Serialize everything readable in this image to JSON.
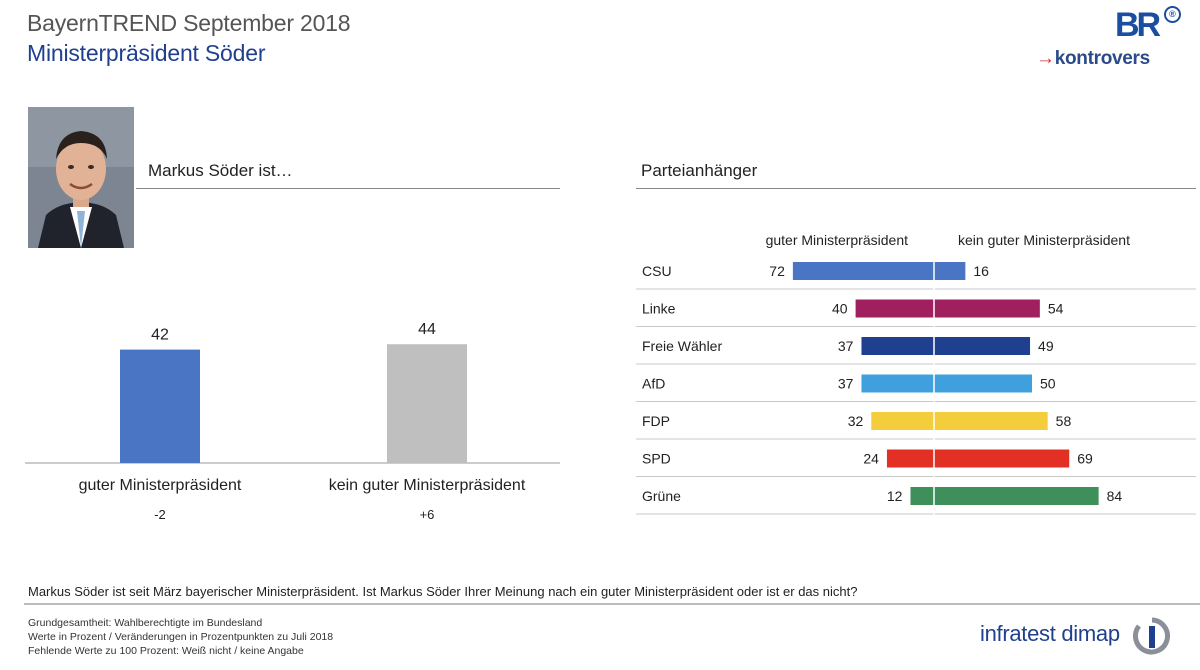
{
  "header": {
    "title": "BayernTREND September 2018",
    "subtitle": "Ministerpräsident Söder"
  },
  "logos": {
    "br": "BR",
    "br_reg": "®",
    "kontrovers_arrow": "→",
    "kontrovers": "kontrovers",
    "infratest": "infratest dimap"
  },
  "colors": {
    "positive_overall": "#4a74c4",
    "negative_overall": "#bfbfbf",
    "title_blue": "#1f3f8f"
  },
  "left_panel": {
    "label": "Markus Söder ist…"
  },
  "right_panel": {
    "label": "Parteianhänger"
  },
  "chart_data": [
    {
      "type": "bar",
      "title": "Markus Söder ist…",
      "categories": [
        "guter Ministerpräsident",
        "kein guter Ministerpräsident"
      ],
      "values": [
        42,
        44
      ],
      "changes": [
        "-2",
        "+6"
      ],
      "colors": [
        "#4a74c4",
        "#bfbfbf"
      ],
      "ylim": [
        0,
        100
      ],
      "grid": false
    },
    {
      "type": "bar",
      "orientation": "diverging-horizontal",
      "title": "Parteianhänger",
      "categories": [
        "CSU",
        "Linke",
        "Freie Wähler",
        "AfD",
        "FDP",
        "SPD",
        "Grüne"
      ],
      "series": [
        {
          "name": "guter Ministerpräsident",
          "values": [
            72,
            40,
            37,
            37,
            32,
            24,
            12
          ]
        },
        {
          "name": "kein guter Ministerpräsident",
          "values": [
            16,
            54,
            49,
            50,
            58,
            69,
            84
          ]
        }
      ],
      "party_colors": [
        "#4a74c4",
        "#a01f5e",
        "#1f3f8f",
        "#3fa0dd",
        "#f4cd3d",
        "#e23024",
        "#3e8f5a"
      ],
      "xlim": [
        0,
        100
      ]
    }
  ],
  "footer": {
    "question": "Markus Söder ist seit März bayerischer Ministerpräsident. Ist Markus Söder Ihrer Meinung nach ein guter Ministerpräsident oder ist er das nicht?",
    "line1": "Grundgesamtheit:  Wahlberechtigte im Bundesland",
    "line2": "Werte in Prozent / Veränderungen  in Prozentpunkten zu Juli 2018",
    "line3": "Fehlende Werte zu 100 Prozent: Weiß nicht / keine Angabe"
  }
}
